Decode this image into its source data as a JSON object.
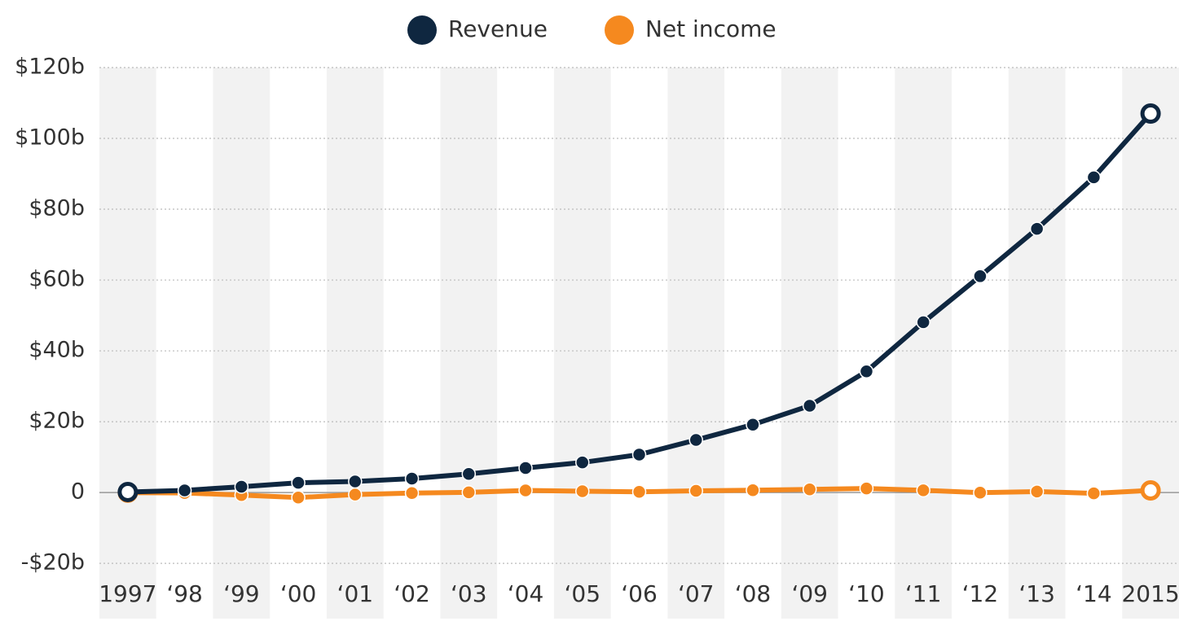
{
  "chart_data": {
    "type": "line",
    "categories": [
      "1997",
      "‘98",
      "‘99",
      "‘00",
      "‘01",
      "‘02",
      "‘03",
      "‘04",
      "‘05",
      "‘06",
      "‘07",
      "‘08",
      "‘09",
      "‘10",
      "‘11",
      "‘12",
      "‘13",
      "‘14",
      "2015"
    ],
    "series": [
      {
        "name": "Revenue",
        "color": "#0f2740",
        "values": [
          0.15,
          0.61,
          1.64,
          2.76,
          3.12,
          3.93,
          5.26,
          6.92,
          8.49,
          10.71,
          14.84,
          19.17,
          24.51,
          34.2,
          48.08,
          61.09,
          74.45,
          88.99,
          107.01
        ]
      },
      {
        "name": "Net income",
        "color": "#f5891f",
        "values": [
          -0.03,
          -0.12,
          -0.72,
          -1.41,
          -0.57,
          -0.15,
          0.04,
          0.59,
          0.36,
          0.19,
          0.48,
          0.65,
          0.9,
          1.15,
          0.63,
          -0.04,
          0.27,
          -0.24,
          0.6
        ]
      }
    ],
    "ylim": [
      -35.6,
      120
    ],
    "yticks": [
      {
        "value": -20,
        "label": "-$20b"
      },
      0,
      {
        "value": 20,
        "label": "$20b"
      },
      {
        "value": 40,
        "label": "$40b"
      },
      {
        "value": 60,
        "label": "$60b"
      },
      {
        "value": 80,
        "label": "$80b"
      },
      {
        "value": 100,
        "label": "$100b"
      },
      {
        "value": 120,
        "label": "$120b"
      }
    ],
    "grid": true,
    "legend": "top"
  }
}
